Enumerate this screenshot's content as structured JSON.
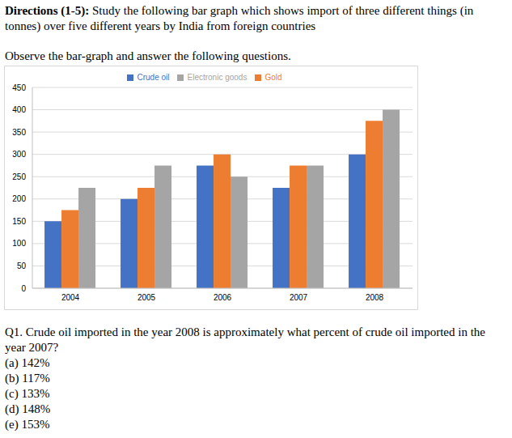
{
  "directions_label": "Directions (1-5):",
  "directions": "Study the following bar graph which shows import of three different things (in tonnes) over five different years by India from foreign countries",
  "instruction": "Observe the bar-graph and answer the following questions.",
  "question": "Q1. Crude oil imported in the year 2008 is approximately what percent of crude oil imported in the year 2007?",
  "options": [
    "(a) 142%",
    "(b) 117%",
    "(c) 133%",
    "(d) 148%",
    "(e) 153%"
  ],
  "chart_data": {
    "type": "bar",
    "categories": [
      "2004",
      "2005",
      "2006",
      "2007",
      "2008"
    ],
    "series": [
      {
        "name": "Crude oil",
        "color": "#4472c4",
        "values": [
          150,
          200,
          275,
          225,
          300
        ]
      },
      {
        "name": "Gold",
        "color": "#ed7d31",
        "values": [
          175,
          225,
          300,
          275,
          375
        ]
      },
      {
        "name": "Electronic goods",
        "color": "#a5a5a5",
        "values": [
          225,
          275,
          250,
          275,
          400
        ]
      }
    ],
    "ylim": [
      0,
      450
    ],
    "yticks": [
      0,
      50,
      100,
      150,
      200,
      250,
      300,
      350,
      400,
      450
    ],
    "grid": true,
    "legend": "top"
  }
}
